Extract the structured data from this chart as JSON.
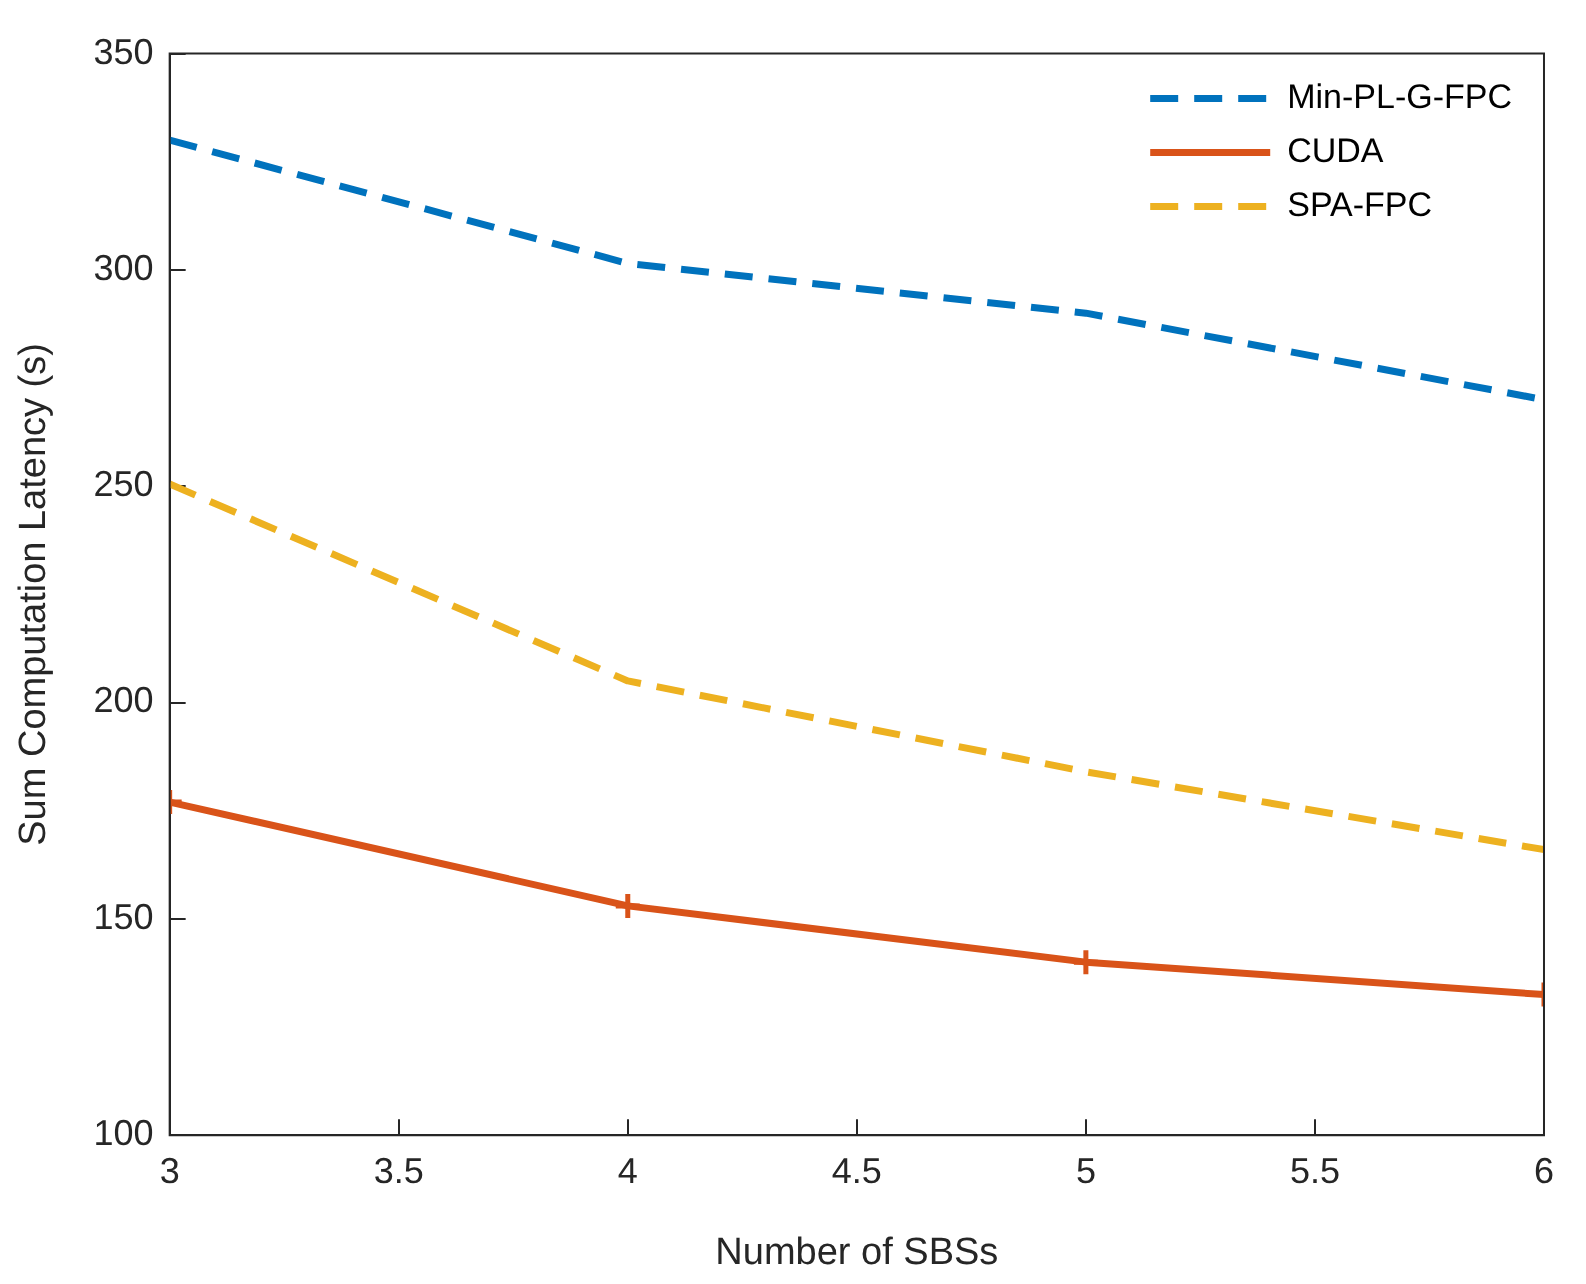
{
  "chart_data": {
    "type": "line",
    "xlabel": "Number of SBSs",
    "ylabel": "Sum Computation Latency (s)",
    "x": [
      3,
      4,
      5,
      6
    ],
    "series": [
      {
        "name": "Min-PL-G-FPC",
        "color": "#0072bd",
        "values": [
          330,
          301.5,
          290,
          270
        ],
        "line_style": "dashed",
        "marker": "none"
      },
      {
        "name": "CUDA",
        "color": "#d95319",
        "values": [
          177,
          153,
          140,
          132.5
        ],
        "line_style": "solid",
        "marker": "cross"
      },
      {
        "name": "SPA-FPC",
        "color": "#edb120",
        "values": [
          250.5,
          205,
          184,
          166
        ],
        "line_style": "dashed",
        "marker": "none"
      }
    ],
    "xlim": [
      3,
      6
    ],
    "xticks": [
      3,
      3.5,
      4,
      4.5,
      5,
      5.5,
      6
    ],
    "ylim": [
      100,
      350
    ],
    "yticks": [
      100,
      150,
      200,
      250,
      300,
      350
    ],
    "grid": false,
    "legend": "top right"
  }
}
